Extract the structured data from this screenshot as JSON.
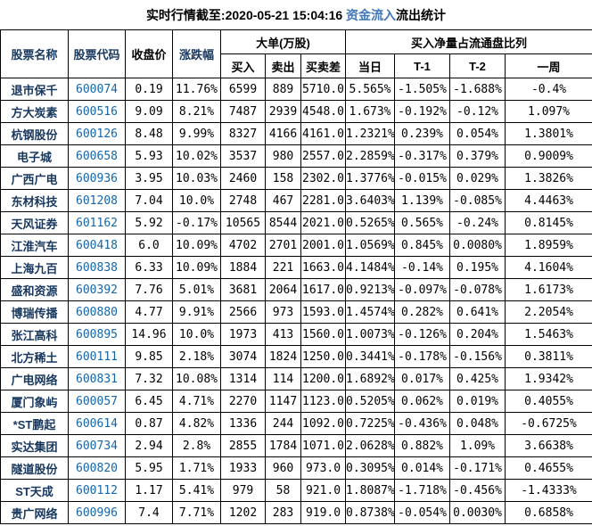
{
  "title": {
    "prefix": "实时行情截至:2020-05-21 15:04:16 ",
    "highlight": "资金流入",
    "suffix": "流出统计"
  },
  "colors": {
    "name_navy": "#17375e",
    "code_blue": "#1565a8",
    "title_highlight_blue": "#4077b8",
    "grid_border": "#000000",
    "background": "#ffffff"
  },
  "table": {
    "headers": {
      "stock_name": "股票名称",
      "stock_code": "股票代码",
      "close_price": "收盘价",
      "change_pct": "涨跌幅",
      "big_order_group": "大单(万股)",
      "buy": "买入",
      "sell": "卖出",
      "buy_sell_diff": "买卖差",
      "net_ratio_group": "买入净量占流通盘比列",
      "day": "当日",
      "t1": "T-1",
      "t2": "T-2",
      "week": "一周"
    },
    "rows": [
      {
        "name": "退市保千",
        "code": "600074",
        "close": "0.19",
        "change": "11.76%",
        "buy": "6599",
        "sell": "889",
        "diff": "5710.0",
        "day": "5.565%",
        "t1": "-1.505%",
        "t2": "-1.688%",
        "week": "-0.4%"
      },
      {
        "name": "方大炭素",
        "code": "600516",
        "close": "9.09",
        "change": "8.21%",
        "buy": "7487",
        "sell": "2939",
        "diff": "4548.0",
        "day": "1.673%",
        "t1": "-0.192%",
        "t2": "-0.12%",
        "week": "1.097%"
      },
      {
        "name": "杭钢股份",
        "code": "600126",
        "close": "8.48",
        "change": "9.99%",
        "buy": "8327",
        "sell": "4166",
        "diff": "4161.0",
        "day": "1.2321%",
        "t1": "0.239%",
        "t2": "0.054%",
        "week": "1.3801%"
      },
      {
        "name": "电子城",
        "code": "600658",
        "close": "5.93",
        "change": "10.02%",
        "buy": "3537",
        "sell": "980",
        "diff": "2557.0",
        "day": "2.2859%",
        "t1": "-0.317%",
        "t2": "0.379%",
        "week": "0.9009%"
      },
      {
        "name": "广西广电",
        "code": "600936",
        "close": "3.95",
        "change": "10.03%",
        "buy": "2460",
        "sell": "158",
        "diff": "2302.0",
        "day": "1.3776%",
        "t1": "-0.015%",
        "t2": "0.029%",
        "week": "1.3826%"
      },
      {
        "name": "东材科技",
        "code": "601208",
        "close": "7.04",
        "change": "10.0%",
        "buy": "2748",
        "sell": "467",
        "diff": "2281.0",
        "day": "3.6403%",
        "t1": "1.139%",
        "t2": "-0.085%",
        "week": "4.4463%"
      },
      {
        "name": "天风证券",
        "code": "601162",
        "close": "5.92",
        "change": "-0.17%",
        "buy": "10565",
        "sell": "8544",
        "diff": "2021.0",
        "day": "0.5265%",
        "t1": "0.565%",
        "t2": "-0.24%",
        "week": "0.8145%"
      },
      {
        "name": "江淮汽车",
        "code": "600418",
        "close": "6.0",
        "change": "10.09%",
        "buy": "4702",
        "sell": "2701",
        "diff": "2001.0",
        "day": "1.0569%",
        "t1": "0.845%",
        "t2": "0.0080%",
        "week": "1.8959%"
      },
      {
        "name": "上海九百",
        "code": "600838",
        "close": "6.33",
        "change": "10.09%",
        "buy": "1884",
        "sell": "221",
        "diff": "1663.0",
        "day": "4.1484%",
        "t1": "-0.14%",
        "t2": "0.195%",
        "week": "4.1604%"
      },
      {
        "name": "盛和资源",
        "code": "600392",
        "close": "7.76",
        "change": "5.01%",
        "buy": "3681",
        "sell": "2064",
        "diff": "1617.0",
        "day": "0.9213%",
        "t1": "-0.097%",
        "t2": "-0.078%",
        "week": "1.6173%"
      },
      {
        "name": "博瑞传播",
        "code": "600880",
        "close": "4.77",
        "change": "9.91%",
        "buy": "2566",
        "sell": "973",
        "diff": "1593.0",
        "day": "1.4574%",
        "t1": "0.282%",
        "t2": "0.641%",
        "week": "2.2054%"
      },
      {
        "name": "张江高科",
        "code": "600895",
        "close": "14.96",
        "change": "10.0%",
        "buy": "1973",
        "sell": "413",
        "diff": "1560.0",
        "day": "1.0073%",
        "t1": "-0.126%",
        "t2": "0.204%",
        "week": "1.5463%"
      },
      {
        "name": "北方稀土",
        "code": "600111",
        "close": "9.85",
        "change": "2.18%",
        "buy": "3074",
        "sell": "1824",
        "diff": "1250.0",
        "day": "0.3441%",
        "t1": "-0.178%",
        "t2": "-0.156%",
        "week": "0.3811%"
      },
      {
        "name": "广电网络",
        "code": "600831",
        "close": "7.32",
        "change": "10.08%",
        "buy": "1314",
        "sell": "114",
        "diff": "1200.0",
        "day": "1.6892%",
        "t1": "0.017%",
        "t2": "0.425%",
        "week": "1.9342%"
      },
      {
        "name": "厦门象屿",
        "code": "600057",
        "close": "6.45",
        "change": "4.71%",
        "buy": "2270",
        "sell": "1147",
        "diff": "1123.0",
        "day": "0.5205%",
        "t1": "0.062%",
        "t2": "0.019%",
        "week": "0.4055%"
      },
      {
        "name": "*ST鹏起",
        "code": "600614",
        "close": "0.87",
        "change": "4.82%",
        "buy": "1336",
        "sell": "244",
        "diff": "1092.0",
        "day": "0.7225%",
        "t1": "-0.436%",
        "t2": "0.048%",
        "week": "-0.6725%"
      },
      {
        "name": "实达集团",
        "code": "600734",
        "close": "2.94",
        "change": "2.8%",
        "buy": "2855",
        "sell": "1784",
        "diff": "1071.0",
        "day": "2.0628%",
        "t1": "0.882%",
        "t2": "1.09%",
        "week": "3.6638%"
      },
      {
        "name": "隧道股份",
        "code": "600820",
        "close": "5.95",
        "change": "1.71%",
        "buy": "1933",
        "sell": "960",
        "diff": "973.0",
        "day": "0.3095%",
        "t1": "0.014%",
        "t2": "-0.171%",
        "week": "0.4655%"
      },
      {
        "name": "ST天成",
        "code": "600112",
        "close": "1.17",
        "change": "5.41%",
        "buy": "979",
        "sell": "58",
        "diff": "921.0",
        "day": "1.8087%",
        "t1": "-1.718%",
        "t2": "-0.456%",
        "week": "-1.4333%"
      },
      {
        "name": "贵广网络",
        "code": "600996",
        "close": "7.4",
        "change": "7.71%",
        "buy": "1202",
        "sell": "283",
        "diff": "919.0",
        "day": "0.8738%",
        "t1": "-0.054%",
        "t2": "0.0030%",
        "week": "0.6858%"
      }
    ]
  }
}
